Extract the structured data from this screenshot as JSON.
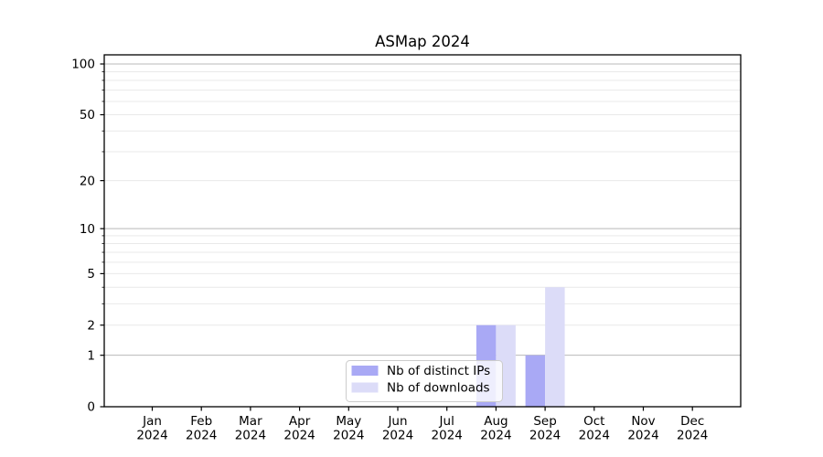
{
  "title": "ASMap 2024",
  "chart_data": {
    "type": "bar",
    "title": "ASMap 2024",
    "x_categories": [
      "Jan",
      "Feb",
      "Mar",
      "Apr",
      "May",
      "Jun",
      "Jul",
      "Aug",
      "Sep",
      "Oct",
      "Nov",
      "Dec"
    ],
    "x_year": "2024",
    "y_scale": "log1p",
    "y_tick_values": [
      0,
      1,
      2,
      5,
      10,
      20,
      50,
      100
    ],
    "y_tick_labels": [
      "0",
      "1",
      "2",
      "5",
      "10",
      "20",
      "50",
      "100"
    ],
    "y_decade_gridlines": [
      1,
      10,
      100
    ],
    "y_minor_gridlines": [
      2,
      3,
      4,
      5,
      6,
      7,
      8,
      9,
      20,
      30,
      40,
      50,
      60,
      70,
      80,
      90
    ],
    "ylim": [
      0,
      113
    ],
    "grid": true,
    "legend_position": "bottom-center",
    "series": [
      {
        "key": "distinct-ips",
        "name": "Nb of distinct IPs",
        "color": "#a9a9f5",
        "values": [
          0,
          0,
          0,
          0,
          0,
          0,
          0,
          2,
          1,
          0,
          0,
          0
        ]
      },
      {
        "key": "downloads",
        "name": "Nb of downloads",
        "color": "#dcdcf8",
        "values": [
          0,
          0,
          0,
          0,
          0,
          0,
          0,
          2,
          4,
          0,
          0,
          0
        ]
      }
    ]
  },
  "colors": {
    "background": "#ffffff",
    "axis": "#000000",
    "text": "#000000",
    "grid_decade": "#b9b9b9",
    "grid_minor": "#e9e9e9",
    "legend_border": "#cccccc",
    "legend_background": "rgba(255,255,255,0.8)"
  }
}
